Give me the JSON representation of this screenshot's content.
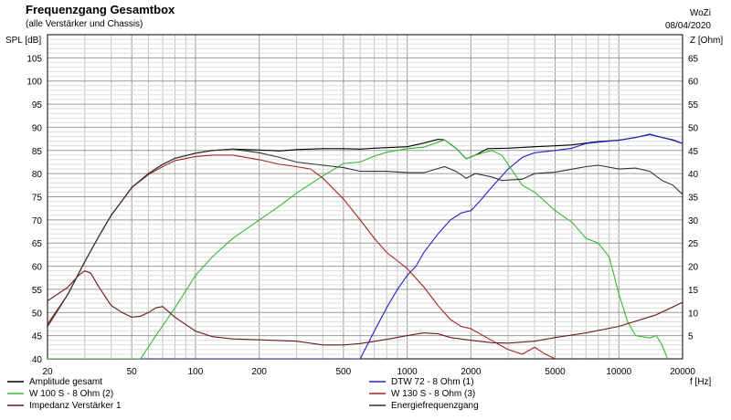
{
  "header": {
    "title": "Frequenzgang Gesamtbox",
    "subtitle": "(alle Verstärker und Chassis)",
    "author": "WoZi",
    "date": "08/04/2020"
  },
  "chart_data": {
    "type": "line",
    "x_scale": "log",
    "xlim": [
      20,
      20000
    ],
    "ylim_left": [
      40,
      110
    ],
    "ylim_right": [
      0,
      70
    ],
    "ylabel_left": "SPL [dB]",
    "ylabel_right": "Z [Ohm]",
    "xlabel": "f [Hz]",
    "x_ticks": [
      20,
      50,
      100,
      200,
      500,
      1000,
      2000,
      5000,
      10000,
      20000
    ],
    "y_ticks_left": [
      45,
      50,
      55,
      60,
      65,
      70,
      75,
      80,
      85,
      90,
      95,
      100,
      105
    ],
    "y_ticks_left_bottom": 40,
    "y_ticks_right": [
      5,
      10,
      15,
      20,
      25,
      30,
      35,
      40,
      45,
      50,
      55,
      60,
      65
    ],
    "grid": true,
    "legend_placement": "bottom",
    "series": [
      {
        "name": "Amplitude gesamt",
        "color": "#000000",
        "axis": "left",
        "points": [
          [
            20,
            47
          ],
          [
            25,
            54
          ],
          [
            30,
            61
          ],
          [
            35,
            66.5
          ],
          [
            40,
            71
          ],
          [
            50,
            77
          ],
          [
            60,
            80
          ],
          [
            70,
            82
          ],
          [
            80,
            83.3
          ],
          [
            100,
            84.4
          ],
          [
            120,
            85
          ],
          [
            150,
            85.3
          ],
          [
            200,
            85.1
          ],
          [
            250,
            84.9
          ],
          [
            300,
            85.2
          ],
          [
            400,
            85.4
          ],
          [
            500,
            85.4
          ],
          [
            600,
            85.3
          ],
          [
            700,
            85.5
          ],
          [
            800,
            85.6
          ],
          [
            1000,
            85.8
          ],
          [
            1200,
            86.6
          ],
          [
            1400,
            87.4
          ],
          [
            1500,
            87.3
          ],
          [
            1700,
            85.5
          ],
          [
            1900,
            83.2
          ],
          [
            2100,
            84
          ],
          [
            2400,
            85.4
          ],
          [
            3000,
            85.5
          ],
          [
            4000,
            85.8
          ],
          [
            5000,
            86
          ],
          [
            6000,
            86.2
          ],
          [
            7000,
            86.6
          ],
          [
            8000,
            86.9
          ],
          [
            10000,
            87.2
          ],
          [
            12000,
            87.8
          ],
          [
            14000,
            88.5
          ],
          [
            16000,
            87.8
          ],
          [
            18000,
            87.3
          ],
          [
            20000,
            86.5
          ]
        ]
      },
      {
        "name": "DTW 72 - 8 Ohm (1)",
        "color": "#2222cc",
        "axis": "left",
        "points": [
          [
            20,
            40
          ],
          [
            600,
            40
          ],
          [
            700,
            46
          ],
          [
            800,
            51
          ],
          [
            900,
            55
          ],
          [
            1000,
            58
          ],
          [
            1100,
            60
          ],
          [
            1200,
            63
          ],
          [
            1400,
            67
          ],
          [
            1600,
            70
          ],
          [
            1800,
            71.5
          ],
          [
            2000,
            72
          ],
          [
            2200,
            74
          ],
          [
            2500,
            77
          ],
          [
            3000,
            81
          ],
          [
            3500,
            83.5
          ],
          [
            4000,
            84.5
          ],
          [
            5000,
            85
          ],
          [
            6000,
            85.5
          ],
          [
            7000,
            86.5
          ],
          [
            8000,
            86.8
          ],
          [
            10000,
            87.2
          ],
          [
            12000,
            87.8
          ],
          [
            14000,
            88.4
          ],
          [
            16000,
            87.8
          ],
          [
            18000,
            87.2
          ],
          [
            20000,
            86.5
          ]
        ]
      },
      {
        "name": "W 100 S - 8 Ohm (2)",
        "color": "#33bb33",
        "axis": "left",
        "points": [
          [
            20,
            40
          ],
          [
            55,
            40
          ],
          [
            65,
            45
          ],
          [
            80,
            51
          ],
          [
            100,
            58
          ],
          [
            120,
            62
          ],
          [
            150,
            66
          ],
          [
            200,
            70
          ],
          [
            250,
            73
          ],
          [
            300,
            75.8
          ],
          [
            400,
            79.5
          ],
          [
            500,
            82.2
          ],
          [
            600,
            82.5
          ],
          [
            700,
            83.8
          ],
          [
            800,
            84.6
          ],
          [
            1000,
            85.4
          ],
          [
            1200,
            85.7
          ],
          [
            1400,
            86.8
          ],
          [
            1500,
            87.3
          ],
          [
            1700,
            85.5
          ],
          [
            1900,
            83.2
          ],
          [
            2100,
            84
          ],
          [
            2500,
            85
          ],
          [
            2800,
            84
          ],
          [
            3100,
            81
          ],
          [
            3500,
            77.5
          ],
          [
            4000,
            76
          ],
          [
            5000,
            72
          ],
          [
            6000,
            69.5
          ],
          [
            7000,
            66
          ],
          [
            8000,
            65
          ],
          [
            9000,
            62
          ],
          [
            10000,
            54
          ],
          [
            11000,
            48
          ],
          [
            12000,
            45
          ],
          [
            14000,
            44.5
          ],
          [
            15000,
            45
          ],
          [
            16000,
            43
          ],
          [
            17000,
            40
          ]
        ]
      },
      {
        "name": "W 130 S - 8 Ohm (3)",
        "color": "#aa2222",
        "axis": "left",
        "points": [
          [
            20,
            47.5
          ],
          [
            25,
            54
          ],
          [
            30,
            61
          ],
          [
            35,
            66.5
          ],
          [
            40,
            71
          ],
          [
            50,
            77
          ],
          [
            60,
            79.8
          ],
          [
            70,
            81.5
          ],
          [
            80,
            82.8
          ],
          [
            100,
            83.7
          ],
          [
            120,
            84
          ],
          [
            150,
            84
          ],
          [
            200,
            83
          ],
          [
            250,
            82
          ],
          [
            300,
            81.5
          ],
          [
            350,
            81
          ],
          [
            400,
            79
          ],
          [
            500,
            74.5
          ],
          [
            600,
            70
          ],
          [
            700,
            66
          ],
          [
            800,
            63
          ],
          [
            1000,
            59.5
          ],
          [
            1200,
            55.5
          ],
          [
            1400,
            51.5
          ],
          [
            1600,
            48.5
          ],
          [
            1800,
            47
          ],
          [
            2000,
            46.5
          ],
          [
            2500,
            44
          ],
          [
            3000,
            42
          ],
          [
            3500,
            41
          ],
          [
            4000,
            42.5
          ],
          [
            4500,
            41
          ],
          [
            5000,
            40
          ]
        ]
      },
      {
        "name": "Impedanz Verstärker 1",
        "color": "#6b1a1a",
        "axis": "right",
        "points": [
          [
            20,
            12.5
          ],
          [
            25,
            15.5
          ],
          [
            28,
            18
          ],
          [
            30,
            19
          ],
          [
            32,
            18.5
          ],
          [
            35,
            15.5
          ],
          [
            40,
            11.5
          ],
          [
            45,
            10
          ],
          [
            50,
            9
          ],
          [
            55,
            9.2
          ],
          [
            60,
            10
          ],
          [
            65,
            11
          ],
          [
            70,
            11.3
          ],
          [
            80,
            9
          ],
          [
            100,
            6
          ],
          [
            120,
            4.8
          ],
          [
            150,
            4.3
          ],
          [
            200,
            4.1
          ],
          [
            300,
            3.8
          ],
          [
            400,
            3
          ],
          [
            500,
            3
          ],
          [
            600,
            3.3
          ],
          [
            800,
            4.2
          ],
          [
            1000,
            5
          ],
          [
            1200,
            5.6
          ],
          [
            1400,
            5.4
          ],
          [
            1600,
            4.6
          ],
          [
            2000,
            4
          ],
          [
            2500,
            3.5
          ],
          [
            3000,
            3.4
          ],
          [
            4000,
            3.8
          ],
          [
            5000,
            4.6
          ],
          [
            7000,
            5.6
          ],
          [
            10000,
            7
          ],
          [
            15000,
            9.5
          ],
          [
            20000,
            12.2
          ]
        ]
      },
      {
        "name": "Energiefrequenzgang",
        "color": "#333333",
        "axis": "left",
        "points": [
          [
            20,
            47
          ],
          [
            25,
            54
          ],
          [
            30,
            61
          ],
          [
            35,
            66.5
          ],
          [
            40,
            71
          ],
          [
            50,
            77
          ],
          [
            60,
            80
          ],
          [
            70,
            82
          ],
          [
            80,
            83.3
          ],
          [
            100,
            84.4
          ],
          [
            120,
            85
          ],
          [
            150,
            85.3
          ],
          [
            200,
            84.5
          ],
          [
            250,
            83.5
          ],
          [
            300,
            82.5
          ],
          [
            400,
            81.8
          ],
          [
            500,
            81.3
          ],
          [
            600,
            80.5
          ],
          [
            800,
            80.5
          ],
          [
            1000,
            80.2
          ],
          [
            1200,
            80.2
          ],
          [
            1500,
            81.5
          ],
          [
            1700,
            80.5
          ],
          [
            1900,
            79
          ],
          [
            2100,
            80
          ],
          [
            2500,
            79.3
          ],
          [
            2800,
            78.5
          ],
          [
            3500,
            78.8
          ],
          [
            4000,
            80
          ],
          [
            5000,
            80.3
          ],
          [
            7000,
            81.5
          ],
          [
            8000,
            81.8
          ],
          [
            10000,
            81
          ],
          [
            12000,
            81.2
          ],
          [
            14000,
            80.5
          ],
          [
            16000,
            78.5
          ],
          [
            18000,
            77.5
          ],
          [
            20000,
            75.5
          ]
        ]
      }
    ]
  }
}
